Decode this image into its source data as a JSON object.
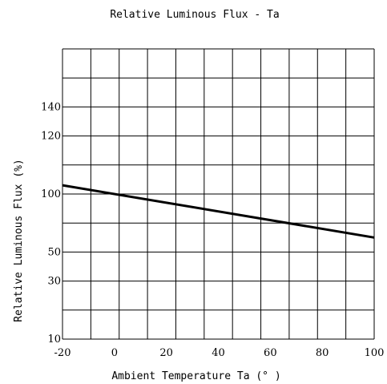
{
  "chart_data": {
    "type": "line",
    "title": "Relative Luminous Flux - Ta",
    "xlabel": "Ambient Temperature Ta (° )",
    "ylabel": "Relative Luminous Flux (%)",
    "x_ticks": [
      "-20",
      "0",
      "20",
      "40",
      "60",
      "80",
      "100"
    ],
    "y_ticks": [
      "140",
      "120",
      "100",
      "50",
      "30",
      "10"
    ],
    "xlim": [
      -20,
      100
    ],
    "grid": true,
    "series": [
      {
        "x": [
          -20,
          100
        ],
        "y": [
          106,
          70
        ]
      }
    ]
  }
}
